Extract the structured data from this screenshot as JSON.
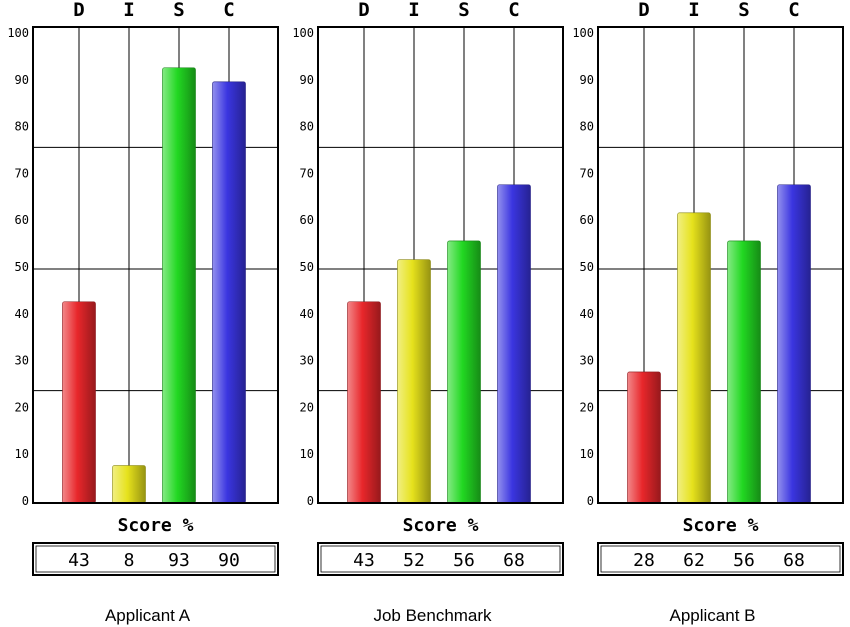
{
  "chart_data": [
    {
      "type": "bar",
      "title": "Applicant A",
      "categories": [
        "D",
        "I",
        "S",
        "C"
      ],
      "values": [
        43,
        8,
        93,
        90
      ],
      "score_row": [
        "43",
        "8",
        "93",
        "90"
      ],
      "xlabel": "Score %",
      "ylim": [
        0,
        100
      ],
      "yticks": [
        0,
        10,
        20,
        30,
        40,
        50,
        60,
        70,
        80,
        90,
        100
      ],
      "grid": true
    },
    {
      "type": "bar",
      "title": "Job Benchmark",
      "categories": [
        "D",
        "I",
        "S",
        "C"
      ],
      "values": [
        43,
        52,
        56,
        68
      ],
      "score_row": [
        "43",
        "52",
        "56",
        "68"
      ],
      "xlabel": "Score %",
      "ylim": [
        0,
        100
      ],
      "yticks": [
        0,
        10,
        20,
        30,
        40,
        50,
        60,
        70,
        80,
        90,
        100
      ],
      "grid": true
    },
    {
      "type": "bar",
      "title": "Applicant B",
      "categories": [
        "D",
        "I",
        "S",
        "C"
      ],
      "values": [
        28,
        62,
        56,
        68
      ],
      "score_row": [
        "28",
        "62",
        "56",
        "68"
      ],
      "xlabel": "Score %",
      "ylim": [
        0,
        100
      ],
      "yticks": [
        0,
        10,
        20,
        30,
        40,
        50,
        60,
        70,
        80,
        90,
        100
      ],
      "grid": true
    }
  ],
  "colors": {
    "D": "#e8272b",
    "I": "#e6e21c",
    "S": "#22d822",
    "C": "#3a35e0",
    "frame": "#000000",
    "background": "#ffffff"
  }
}
